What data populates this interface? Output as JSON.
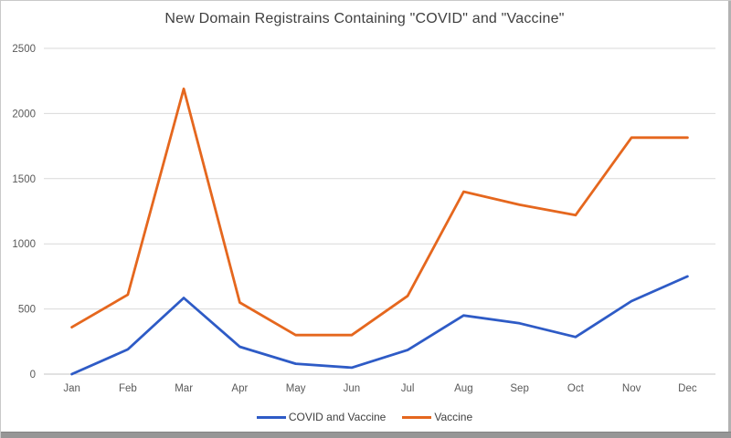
{
  "chart_data": {
    "type": "line",
    "title": "New Domain Registrains Containing \"COVID\" and \"Vaccine\"",
    "categories": [
      "Jan",
      "Feb",
      "Mar",
      "Apr",
      "May",
      "Jun",
      "Jul",
      "Aug",
      "Sep",
      "Oct",
      "Nov",
      "Dec"
    ],
    "series": [
      {
        "name": "COVID and Vaccine",
        "color": "#2E5BC6",
        "values": [
          0,
          190,
          585,
          210,
          80,
          50,
          185,
          450,
          390,
          285,
          560,
          750
        ]
      },
      {
        "name": "Vaccine",
        "color": "#E5671E",
        "values": [
          360,
          610,
          2190,
          550,
          300,
          300,
          600,
          1400,
          1300,
          1220,
          1815,
          1815
        ]
      }
    ],
    "xlabel": "",
    "ylabel": "",
    "ylim": [
      0,
      2500
    ],
    "y_ticks": [
      0,
      500,
      1000,
      1500,
      2000,
      2500
    ],
    "grid": "horizontal",
    "legend_position": "bottom"
  },
  "colors": {
    "title_text": "#3f3f3f",
    "axis_text": "#595959",
    "gridline": "#d9d9d9",
    "axis_line": "#c6c6c6",
    "series_blue": "#2E5BC6",
    "series_orange": "#E5671E"
  }
}
